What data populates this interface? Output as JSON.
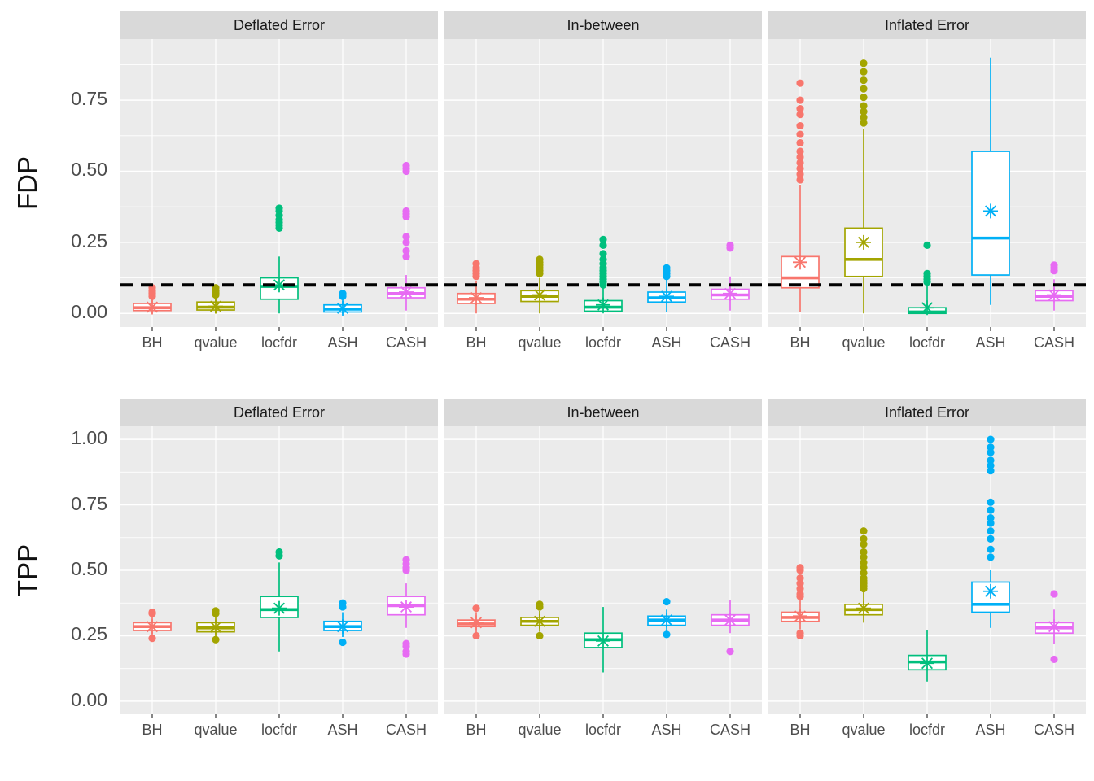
{
  "figure": {
    "background": "#ffffff",
    "panel_bg": "#ebebeb",
    "strip_bg": "#d9d9d9",
    "grid_color": "#ffffff",
    "tick_label_color": "#4d4d4d",
    "threshold_color": "#000000",
    "method_colors": {
      "BH": "#F8766D",
      "qvalue": "#A3A500",
      "locfdr": "#00BF7D",
      "ASH": "#00B0F6",
      "CASH": "#E76BF3"
    }
  },
  "chart_data": {
    "type": "boxplot",
    "facet_columns": [
      "Deflated Error",
      "In-between",
      "Inflated Error"
    ],
    "categories": [
      "BH",
      "qvalue",
      "locfdr",
      "ASH",
      "CASH"
    ],
    "legend_position": "none",
    "grid": true,
    "rows": [
      {
        "ylabel": "FDP",
        "ylim": [
          -0.048,
          0.965
        ],
        "yticks": [
          0,
          0.25,
          0.5,
          0.75
        ],
        "ytick_labels": [
          "0.00",
          "0.25",
          "0.50",
          "0.75"
        ],
        "yminor": [
          0.125,
          0.375,
          0.625,
          0.875
        ],
        "threshold": 0.1,
        "facets": [
          {
            "label": "Deflated Error",
            "boxes": [
              {
                "method": "BH",
                "whislo": 0.0,
                "q1": 0.01,
                "med": 0.02,
                "q3": 0.035,
                "whishi": 0.055,
                "mean": 0.022,
                "outliers": [
                  0.06,
                  0.065,
                  0.07,
                  0.075,
                  0.08,
                  0.09
                ]
              },
              {
                "method": "qvalue",
                "whislo": 0.0,
                "q1": 0.012,
                "med": 0.022,
                "q3": 0.04,
                "whishi": 0.06,
                "mean": 0.025,
                "outliers": [
                  0.065,
                  0.07,
                  0.075,
                  0.08,
                  0.09
                ]
              },
              {
                "method": "locfdr",
                "whislo": 0.0,
                "q1": 0.05,
                "med": 0.095,
                "q3": 0.125,
                "whishi": 0.2,
                "mean": 0.1,
                "outliers": [
                  0.3,
                  0.31,
                  0.32,
                  0.33,
                  0.345,
                  0.36,
                  0.37
                ]
              },
              {
                "method": "ASH",
                "whislo": 0.0,
                "q1": 0.005,
                "med": 0.015,
                "q3": 0.03,
                "whishi": 0.055,
                "mean": 0.018,
                "outliers": [
                  0.06,
                  0.065,
                  0.07
                ]
              },
              {
                "method": "CASH",
                "whislo": 0.01,
                "q1": 0.055,
                "med": 0.07,
                "q3": 0.09,
                "whishi": 0.135,
                "mean": 0.075,
                "outliers": [
                  0.2,
                  0.22,
                  0.25,
                  0.27,
                  0.34,
                  0.35,
                  0.36,
                  0.5,
                  0.51,
                  0.52
                ]
              }
            ]
          },
          {
            "label": "In-between",
            "boxes": [
              {
                "method": "BH",
                "whislo": 0.0,
                "q1": 0.035,
                "med": 0.05,
                "q3": 0.07,
                "whishi": 0.115,
                "mean": 0.055,
                "outliers": [
                  0.13,
                  0.14,
                  0.15,
                  0.16,
                  0.175
                ]
              },
              {
                "method": "qvalue",
                "whislo": 0.0,
                "q1": 0.042,
                "med": 0.06,
                "q3": 0.08,
                "whishi": 0.125,
                "mean": 0.065,
                "outliers": [
                  0.14,
                  0.15,
                  0.16,
                  0.17,
                  0.18,
                  0.19
                ]
              },
              {
                "method": "locfdr",
                "whislo": 0.0,
                "q1": 0.008,
                "med": 0.022,
                "q3": 0.045,
                "whishi": 0.09,
                "mean": 0.03,
                "outliers": [
                  0.1,
                  0.11,
                  0.12,
                  0.13,
                  0.14,
                  0.15,
                  0.16,
                  0.175,
                  0.19,
                  0.21,
                  0.24,
                  0.26
                ]
              },
              {
                "method": "ASH",
                "whislo": 0.005,
                "q1": 0.04,
                "med": 0.055,
                "q3": 0.075,
                "whishi": 0.12,
                "mean": 0.06,
                "outliers": [
                  0.13,
                  0.14,
                  0.15,
                  0.16
                ]
              },
              {
                "method": "CASH",
                "whislo": 0.01,
                "q1": 0.05,
                "med": 0.065,
                "q3": 0.085,
                "whishi": 0.13,
                "mean": 0.07,
                "outliers": [
                  0.23,
                  0.24
                ]
              }
            ]
          },
          {
            "label": "Inflated Error",
            "boxes": [
              {
                "method": "BH",
                "whislo": 0.005,
                "q1": 0.09,
                "med": 0.125,
                "q3": 0.2,
                "whishi": 0.45,
                "mean": 0.18,
                "outliers": [
                  0.47,
                  0.49,
                  0.51,
                  0.53,
                  0.55,
                  0.57,
                  0.6,
                  0.63,
                  0.66,
                  0.7,
                  0.72,
                  0.75,
                  0.81
                ]
              },
              {
                "method": "qvalue",
                "whislo": 0.0,
                "q1": 0.13,
                "med": 0.19,
                "q3": 0.3,
                "whishi": 0.65,
                "mean": 0.25,
                "outliers": [
                  0.67,
                  0.69,
                  0.71,
                  0.73,
                  0.76,
                  0.79,
                  0.82,
                  0.85,
                  0.88
                ]
              },
              {
                "method": "locfdr",
                "whislo": 0.0,
                "q1": 0.0,
                "med": 0.005,
                "q3": 0.02,
                "whishi": 0.1,
                "mean": 0.02,
                "outliers": [
                  0.11,
                  0.12,
                  0.13,
                  0.14,
                  0.24
                ]
              },
              {
                "method": "ASH",
                "whislo": 0.03,
                "q1": 0.135,
                "med": 0.265,
                "q3": 0.57,
                "whishi": 0.9,
                "mean": 0.36,
                "outliers": []
              },
              {
                "method": "CASH",
                "whislo": 0.01,
                "q1": 0.045,
                "med": 0.06,
                "q3": 0.08,
                "whishi": 0.12,
                "mean": 0.065,
                "outliers": [
                  0.15,
                  0.16,
                  0.17
                ]
              }
            ]
          }
        ]
      },
      {
        "ylabel": "TPP",
        "ylim": [
          -0.05,
          1.05
        ],
        "yticks": [
          0,
          0.25,
          0.5,
          0.75,
          1.0
        ],
        "ytick_labels": [
          "0.00",
          "0.25",
          "0.50",
          "0.75",
          "1.00"
        ],
        "yminor": [
          0.125,
          0.375,
          0.625,
          0.875
        ],
        "threshold": null,
        "facets": [
          {
            "label": "Deflated Error",
            "boxes": [
              {
                "method": "BH",
                "whislo": 0.25,
                "q1": 0.27,
                "med": 0.285,
                "q3": 0.3,
                "whishi": 0.325,
                "mean": 0.285,
                "outliers": [
                  0.24,
                  0.335,
                  0.34
                ]
              },
              {
                "method": "qvalue",
                "whislo": 0.245,
                "q1": 0.265,
                "med": 0.28,
                "q3": 0.3,
                "whishi": 0.325,
                "mean": 0.283,
                "outliers": [
                  0.235,
                  0.335,
                  0.345
                ]
              },
              {
                "method": "locfdr",
                "whislo": 0.19,
                "q1": 0.32,
                "med": 0.35,
                "q3": 0.4,
                "whishi": 0.53,
                "mean": 0.355,
                "outliers": [
                  0.555,
                  0.57
                ]
              },
              {
                "method": "ASH",
                "whislo": 0.245,
                "q1": 0.27,
                "med": 0.285,
                "q3": 0.305,
                "whishi": 0.34,
                "mean": 0.285,
                "outliers": [
                  0.225,
                  0.36,
                  0.375
                ]
              },
              {
                "method": "CASH",
                "whislo": 0.28,
                "q1": 0.33,
                "med": 0.365,
                "q3": 0.4,
                "whishi": 0.45,
                "mean": 0.36,
                "outliers": [
                  0.18,
                  0.19,
                  0.21,
                  0.22,
                  0.5,
                  0.51,
                  0.525,
                  0.54
                ]
              }
            ]
          },
          {
            "label": "In-between",
            "boxes": [
              {
                "method": "BH",
                "whislo": 0.26,
                "q1": 0.285,
                "med": 0.295,
                "q3": 0.31,
                "whishi": 0.34,
                "mean": 0.3,
                "outliers": [
                  0.25,
                  0.355
                ]
              },
              {
                "method": "qvalue",
                "whislo": 0.265,
                "q1": 0.29,
                "med": 0.305,
                "q3": 0.32,
                "whishi": 0.345,
                "mean": 0.305,
                "outliers": [
                  0.25,
                  0.36,
                  0.37
                ]
              },
              {
                "method": "locfdr",
                "whislo": 0.11,
                "q1": 0.205,
                "med": 0.235,
                "q3": 0.26,
                "whishi": 0.36,
                "mean": 0.23,
                "outliers": []
              },
              {
                "method": "ASH",
                "whislo": 0.26,
                "q1": 0.29,
                "med": 0.31,
                "q3": 0.325,
                "whishi": 0.35,
                "mean": 0.31,
                "outliers": [
                  0.255,
                  0.38
                ]
              },
              {
                "method": "CASH",
                "whislo": 0.26,
                "q1": 0.29,
                "med": 0.31,
                "q3": 0.33,
                "whishi": 0.385,
                "mean": 0.31,
                "outliers": [
                  0.19
                ]
              }
            ]
          },
          {
            "label": "Inflated Error",
            "boxes": [
              {
                "method": "BH",
                "whislo": 0.275,
                "q1": 0.305,
                "med": 0.32,
                "q3": 0.34,
                "whishi": 0.385,
                "mean": 0.325,
                "outliers": [
                  0.25,
                  0.26,
                  0.4,
                  0.41,
                  0.43,
                  0.45,
                  0.47,
                  0.5,
                  0.51
                ]
              },
              {
                "method": "qvalue",
                "whislo": 0.3,
                "q1": 0.33,
                "med": 0.35,
                "q3": 0.37,
                "whishi": 0.42,
                "mean": 0.355,
                "outliers": [
                  0.43,
                  0.44,
                  0.45,
                  0.46,
                  0.47,
                  0.49,
                  0.51,
                  0.53,
                  0.55,
                  0.57,
                  0.6,
                  0.62,
                  0.65
                ]
              },
              {
                "method": "locfdr",
                "whislo": 0.075,
                "q1": 0.12,
                "med": 0.15,
                "q3": 0.175,
                "whishi": 0.27,
                "mean": 0.145,
                "outliers": []
              },
              {
                "method": "ASH",
                "whislo": 0.28,
                "q1": 0.34,
                "med": 0.37,
                "q3": 0.455,
                "whishi": 0.5,
                "mean": 0.42,
                "outliers": [
                  0.55,
                  0.58,
                  0.62,
                  0.65,
                  0.68,
                  0.7,
                  0.73,
                  0.76,
                  0.88,
                  0.9,
                  0.92,
                  0.95,
                  0.97,
                  1.0
                ]
              },
              {
                "method": "CASH",
                "whislo": 0.22,
                "q1": 0.26,
                "med": 0.28,
                "q3": 0.3,
                "whishi": 0.35,
                "mean": 0.285,
                "outliers": [
                  0.16,
                  0.41
                ]
              }
            ]
          }
        ]
      }
    ]
  }
}
